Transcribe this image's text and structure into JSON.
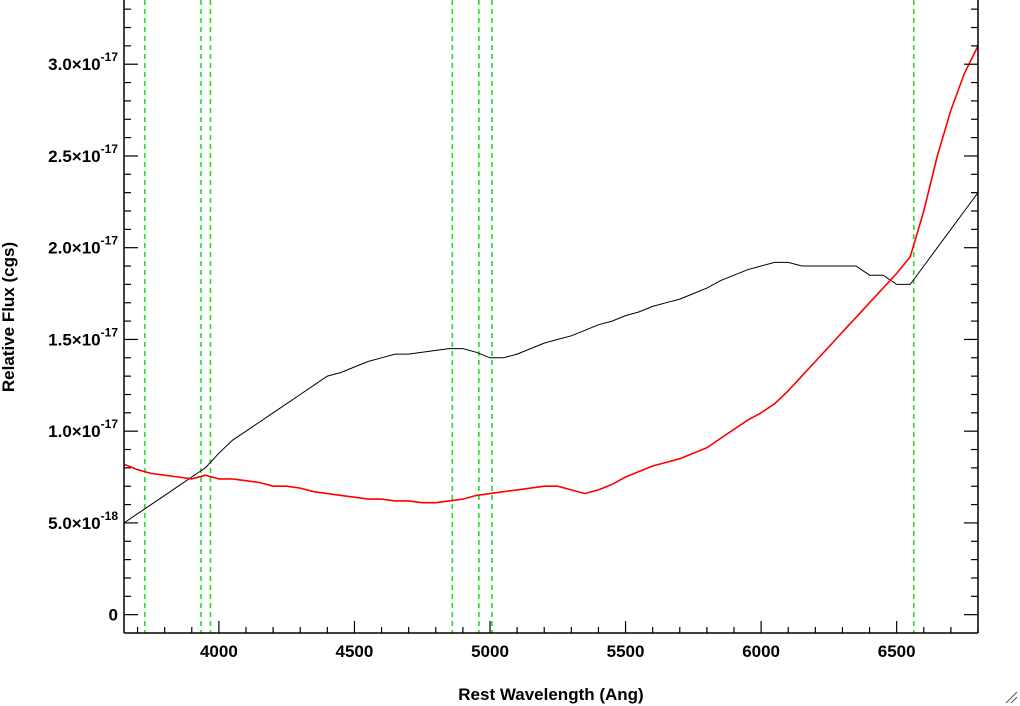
{
  "chart_data": {
    "type": "line",
    "xlabel": "Rest Wavelength (Ang)",
    "ylabel": "Relative Flux (cgs)",
    "xlim": [
      3650,
      6800
    ],
    "ylim": [
      -1e-18,
      3.35e-17
    ],
    "grid": false,
    "x_ticks": [
      {
        "value": 4000,
        "label": "4000"
      },
      {
        "value": 4500,
        "label": "4500"
      },
      {
        "value": 5000,
        "label": "5000"
      },
      {
        "value": 5500,
        "label": "5500"
      },
      {
        "value": 6000,
        "label": "6000"
      },
      {
        "value": 6500,
        "label": "6500"
      }
    ],
    "y_ticks": [
      {
        "value": 0,
        "label": "0"
      },
      {
        "value": 5e-18,
        "mantissa": "5.0",
        "exponent": "-18"
      },
      {
        "value": 1e-17,
        "mantissa": "1.0",
        "exponent": "-17"
      },
      {
        "value": 1.5e-17,
        "mantissa": "1.5",
        "exponent": "-17"
      },
      {
        "value": 2e-17,
        "mantissa": "2.0",
        "exponent": "-17"
      },
      {
        "value": 2.5e-17,
        "mantissa": "2.5",
        "exponent": "-17"
      },
      {
        "value": 3e-17,
        "mantissa": "3.0",
        "exponent": "-17"
      }
    ],
    "times_sign": "×10",
    "vlines": [
      3727,
      3934,
      3969,
      4861,
      4959,
      5007,
      6563
    ],
    "series": [
      {
        "role": "observed spectrum",
        "color": "#000000",
        "x": [
          3650,
          3700,
          3750,
          3800,
          3850,
          3900,
          3950,
          4000,
          4050,
          4100,
          4150,
          4200,
          4250,
          4300,
          4350,
          4400,
          4450,
          4500,
          4550,
          4600,
          4650,
          4700,
          4750,
          4800,
          4850,
          4900,
          4950,
          5000,
          5050,
          5100,
          5150,
          5200,
          5250,
          5300,
          5350,
          5400,
          5450,
          5500,
          5550,
          5600,
          5650,
          5700,
          5750,
          5800,
          5850,
          5900,
          5950,
          6000,
          6050,
          6100,
          6150,
          6200,
          6250,
          6300,
          6350,
          6400,
          6450,
          6500,
          6550,
          6600,
          6650,
          6700,
          6750,
          6800
        ],
        "y": [
          5e-18,
          5.5e-18,
          6e-18,
          6.5e-18,
          7e-18,
          7.5e-18,
          8e-18,
          8.8e-18,
          9.5e-18,
          1e-17,
          1.05e-17,
          1.1e-17,
          1.15e-17,
          1.2e-17,
          1.25e-17,
          1.3e-17,
          1.32e-17,
          1.35e-17,
          1.38e-17,
          1.4e-17,
          1.42e-17,
          1.42e-17,
          1.43e-17,
          1.44e-17,
          1.45e-17,
          1.45e-17,
          1.43e-17,
          1.4e-17,
          1.4e-17,
          1.42e-17,
          1.45e-17,
          1.48e-17,
          1.5e-17,
          1.52e-17,
          1.55e-17,
          1.58e-17,
          1.6e-17,
          1.63e-17,
          1.65e-17,
          1.68e-17,
          1.7e-17,
          1.72e-17,
          1.75e-17,
          1.78e-17,
          1.82e-17,
          1.85e-17,
          1.88e-17,
          1.9e-17,
          1.92e-17,
          1.92e-17,
          1.9e-17,
          1.9e-17,
          1.9e-17,
          1.9e-17,
          1.9e-17,
          1.85e-17,
          1.85e-17,
          1.8e-17,
          1.8e-17,
          1.9e-17,
          2e-17,
          2.1e-17,
          2.2e-17,
          2.3e-17
        ]
      },
      {
        "role": "error spectrum",
        "color": "#ff0000",
        "x": [
          3650,
          3700,
          3750,
          3800,
          3850,
          3900,
          3950,
          4000,
          4050,
          4100,
          4150,
          4200,
          4250,
          4300,
          4350,
          4400,
          4450,
          4500,
          4550,
          4600,
          4650,
          4700,
          4750,
          4800,
          4850,
          4900,
          4950,
          5000,
          5050,
          5100,
          5150,
          5200,
          5250,
          5300,
          5350,
          5400,
          5450,
          5500,
          5550,
          5600,
          5650,
          5700,
          5750,
          5800,
          5850,
          5900,
          5950,
          6000,
          6050,
          6100,
          6150,
          6200,
          6250,
          6300,
          6350,
          6400,
          6450,
          6500,
          6550,
          6600,
          6650,
          6700,
          6750,
          6800
        ],
        "y": [
          8.2e-18,
          7.9e-18,
          7.7e-18,
          7.6e-18,
          7.5e-18,
          7.4e-18,
          7.6e-18,
          7.4e-18,
          7.4e-18,
          7.3e-18,
          7.2e-18,
          7e-18,
          7e-18,
          6.9e-18,
          6.7e-18,
          6.6e-18,
          6.5e-18,
          6.4e-18,
          6.3e-18,
          6.3e-18,
          6.2e-18,
          6.2e-18,
          6.1e-18,
          6.1e-18,
          6.2e-18,
          6.3e-18,
          6.5e-18,
          6.6e-18,
          6.7e-18,
          6.8e-18,
          6.9e-18,
          7e-18,
          7e-18,
          6.8e-18,
          6.6e-18,
          6.8e-18,
          7.1e-18,
          7.5e-18,
          7.8e-18,
          8.1e-18,
          8.3e-18,
          8.5e-18,
          8.8e-18,
          9.1e-18,
          9.6e-18,
          1.01e-17,
          1.06e-17,
          1.1e-17,
          1.15e-17,
          1.22e-17,
          1.3e-17,
          1.38e-17,
          1.46e-17,
          1.54e-17,
          1.62e-17,
          1.7e-17,
          1.78e-17,
          1.86e-17,
          1.95e-17,
          2.2e-17,
          2.5e-17,
          2.75e-17,
          2.95e-17,
          3.1e-17
        ]
      }
    ]
  }
}
